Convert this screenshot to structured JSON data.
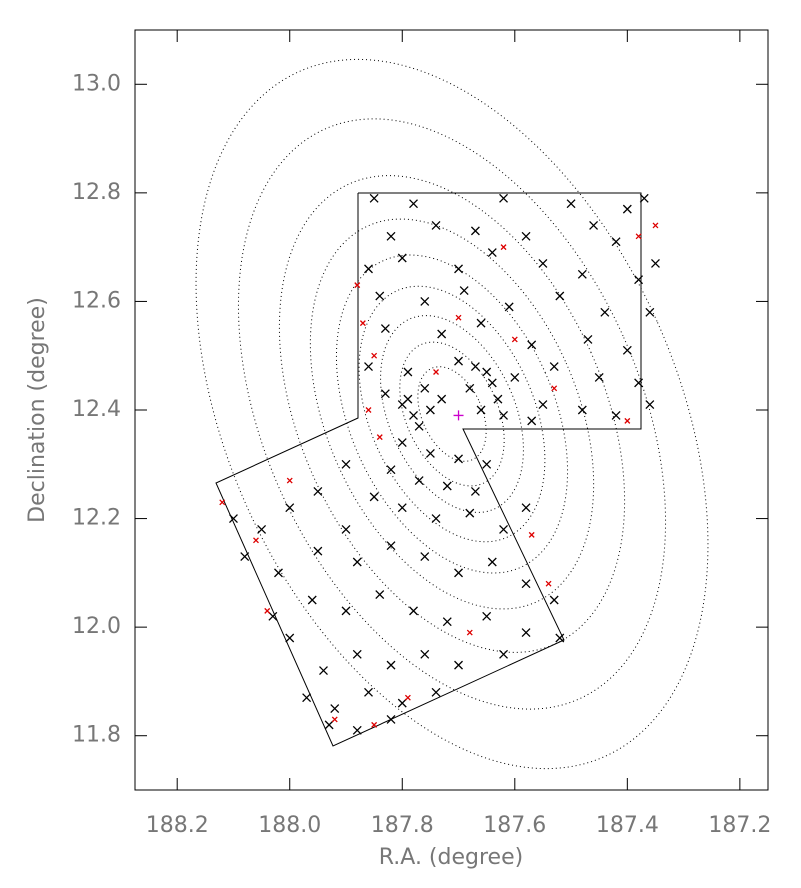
{
  "chart_data": {
    "type": "scatter",
    "x_label": "R.A. (degree)",
    "y_label": "Declination (degree)",
    "xlim": [
      188.275,
      187.15
    ],
    "ylim": [
      11.7,
      13.1
    ],
    "xticks": [
      188.2,
      {
        "value": 188.0,
        "label": "188.0"
      },
      187.8,
      187.6,
      187.4,
      187.2
    ],
    "yticks": [
      11.8,
      {
        "value": 12.0,
        "label": "12.0"
      },
      12.2,
      12.4,
      12.6,
      12.8,
      {
        "value": 13.0,
        "label": "13.0"
      }
    ],
    "series": [
      {
        "color": "#000000",
        "marker": "x",
        "x": [
          187.85,
          187.78,
          187.62,
          187.5,
          187.4,
          187.37,
          187.82,
          187.74,
          187.67,
          187.58,
          187.46,
          187.42,
          187.86,
          187.8,
          187.7,
          187.64,
          187.55,
          187.48,
          187.38,
          187.35,
          187.84,
          187.76,
          187.69,
          187.61,
          187.52,
          187.44,
          187.36,
          187.83,
          187.73,
          187.66,
          187.57,
          187.47,
          187.4,
          187.86,
          187.79,
          187.7,
          187.65,
          187.6,
          187.53,
          187.45,
          187.38,
          187.83,
          187.76,
          187.68,
          187.63,
          187.55,
          187.48,
          187.42,
          187.36,
          187.8,
          187.78,
          187.75,
          187.79,
          187.77,
          187.73,
          187.66,
          187.64,
          187.67,
          187.62,
          187.57,
          187.8,
          187.75,
          187.7,
          187.65,
          187.82,
          187.77,
          187.72,
          187.67,
          187.9,
          187.95,
          188.0,
          188.05,
          188.1,
          188.08,
          187.85,
          187.8,
          187.74,
          187.68,
          187.62,
          187.58,
          187.9,
          187.95,
          188.02,
          187.88,
          187.82,
          187.76,
          187.7,
          187.64,
          187.58,
          187.53,
          187.96,
          187.9,
          187.84,
          187.78,
          187.72,
          187.65,
          187.58,
          187.52,
          188.0,
          187.94,
          187.88,
          187.82,
          187.76,
          187.7,
          187.62,
          187.97,
          187.92,
          187.86,
          187.8,
          187.74,
          187.93,
          187.88,
          187.82,
          188.03
        ],
        "values": [
          12.79,
          12.78,
          12.79,
          12.78,
          12.77,
          12.79,
          12.72,
          12.74,
          12.73,
          12.72,
          12.74,
          12.71,
          12.66,
          12.68,
          12.66,
          12.69,
          12.67,
          12.65,
          12.64,
          12.67,
          12.61,
          12.6,
          12.62,
          12.59,
          12.61,
          12.58,
          12.58,
          12.55,
          12.54,
          12.56,
          12.52,
          12.53,
          12.51,
          12.48,
          12.47,
          12.49,
          12.47,
          12.46,
          12.48,
          12.46,
          12.45,
          12.43,
          12.44,
          12.44,
          12.42,
          12.41,
          12.4,
          12.39,
          12.41,
          12.41,
          12.39,
          12.4,
          12.42,
          12.37,
          12.42,
          12.4,
          12.45,
          12.48,
          12.39,
          12.38,
          12.34,
          12.32,
          12.31,
          12.3,
          12.29,
          12.27,
          12.26,
          12.25,
          12.3,
          12.25,
          12.22,
          12.18,
          12.2,
          12.13,
          12.24,
          12.22,
          12.2,
          12.21,
          12.18,
          12.22,
          12.18,
          12.14,
          12.1,
          12.12,
          12.15,
          12.13,
          12.1,
          12.12,
          12.08,
          12.05,
          12.05,
          12.03,
          12.06,
          12.03,
          12.01,
          12.02,
          11.99,
          11.98,
          11.98,
          11.92,
          11.95,
          11.93,
          11.95,
          11.93,
          11.95,
          11.87,
          11.85,
          11.88,
          11.86,
          11.88,
          11.82,
          11.81,
          11.83,
          12.02
        ]
      },
      {
        "color": "#dd0000",
        "marker": "x",
        "x": [
          187.88,
          187.87,
          187.85,
          187.86,
          187.74,
          187.6,
          187.53,
          187.4,
          187.38,
          187.35,
          187.62,
          188.12,
          188.06,
          188.04,
          187.92,
          187.85,
          187.79,
          187.68,
          187.57,
          187.54,
          188.0,
          187.7,
          187.84
        ],
        "values": [
          12.63,
          12.56,
          12.5,
          12.4,
          12.47,
          12.53,
          12.44,
          12.38,
          12.72,
          12.74,
          12.7,
          12.23,
          12.16,
          12.03,
          11.83,
          11.82,
          11.87,
          11.99,
          12.17,
          12.08,
          12.27,
          12.57,
          12.35
        ]
      },
      {
        "color": "#cc00cc",
        "marker": "+",
        "x": [
          187.7
        ],
        "values": [
          12.39
        ]
      }
    ]
  }
}
